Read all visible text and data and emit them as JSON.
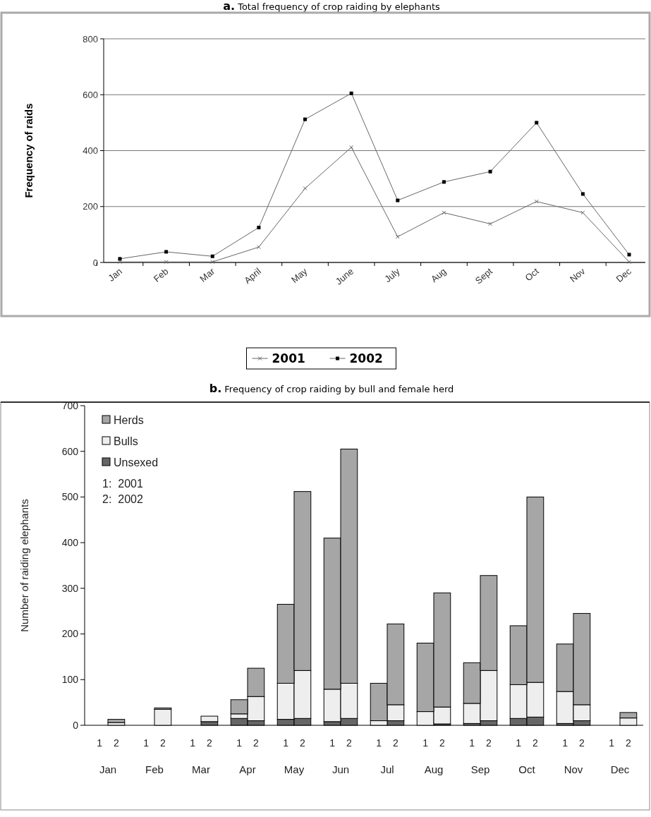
{
  "chart_data": [
    {
      "type": "line",
      "title": "a.  Total frequency of crop raiding by elephants",
      "ylabel": "Frequency of raids",
      "categories": [
        "Jan",
        "Feb",
        "Mar",
        "April",
        "May",
        "June",
        "July",
        "Aug",
        "Sept",
        "Oct",
        "Nov",
        "Dec"
      ],
      "series": [
        {
          "name": "2001",
          "color": "#666666",
          "marker": "cross",
          "values": [
            2,
            2,
            2,
            55,
            265,
            412,
            92,
            178,
            138,
            218,
            178,
            2
          ]
        },
        {
          "name": "2002",
          "color": "#666666",
          "marker": "square",
          "values": [
            13,
            38,
            22,
            125,
            512,
            605,
            222,
            288,
            325,
            500,
            245,
            28
          ]
        }
      ],
      "ylim": [
        0,
        800
      ],
      "yticks": [
        0,
        200,
        400,
        600,
        800
      ],
      "grid": "y",
      "legend": "bottom",
      "line_style": "solid"
    },
    {
      "type": "bar",
      "stacked": true,
      "title": "b.  Frequency of crop raiding by bull and female herd",
      "ylabel": "Number of raiding elephants",
      "categories": [
        "1",
        "2",
        "1",
        "2",
        "1",
        "2",
        "1",
        "2",
        "1",
        "2",
        "1",
        "2",
        "1",
        "2",
        "1",
        "2",
        "1",
        "2",
        "1",
        "2",
        "1",
        "2",
        "1",
        "2"
      ],
      "series": [
        {
          "name": "Unsexed",
          "color": "#666666",
          "values": [
            0,
            0,
            0,
            0,
            0,
            8,
            15,
            10,
            13,
            15,
            8,
            15,
            0,
            10,
            0,
            3,
            4,
            10,
            15,
            18,
            4,
            10,
            0,
            0
          ]
        },
        {
          "name": "Bulls",
          "color": "#eeeeee",
          "values": [
            0,
            6,
            0,
            35,
            0,
            12,
            10,
            53,
            79,
            105,
            71,
            77,
            10,
            35,
            30,
            37,
            44,
            110,
            74,
            76,
            70,
            35,
            0,
            16
          ]
        },
        {
          "name": "Herds",
          "color": "#a6a6a6",
          "values": [
            0,
            7,
            0,
            3,
            0,
            0,
            31,
            62,
            173,
            392,
            331,
            513,
            82,
            177,
            150,
            250,
            89,
            208,
            129,
            406,
            104,
            200,
            0,
            12
          ]
        }
      ],
      "ylim": [
        0,
        700
      ],
      "yticks": [
        0,
        100,
        200,
        300,
        400,
        500,
        600,
        700
      ],
      "legend": "top left",
      "annotations": [
        "1:  2001",
        "2:  2002",
        "Jan",
        "Feb",
        "Mar",
        "Apr",
        "May",
        "Jun",
        "Jul",
        "Aug",
        "Sep",
        "Oct",
        "Nov",
        "Dec"
      ]
    }
  ]
}
